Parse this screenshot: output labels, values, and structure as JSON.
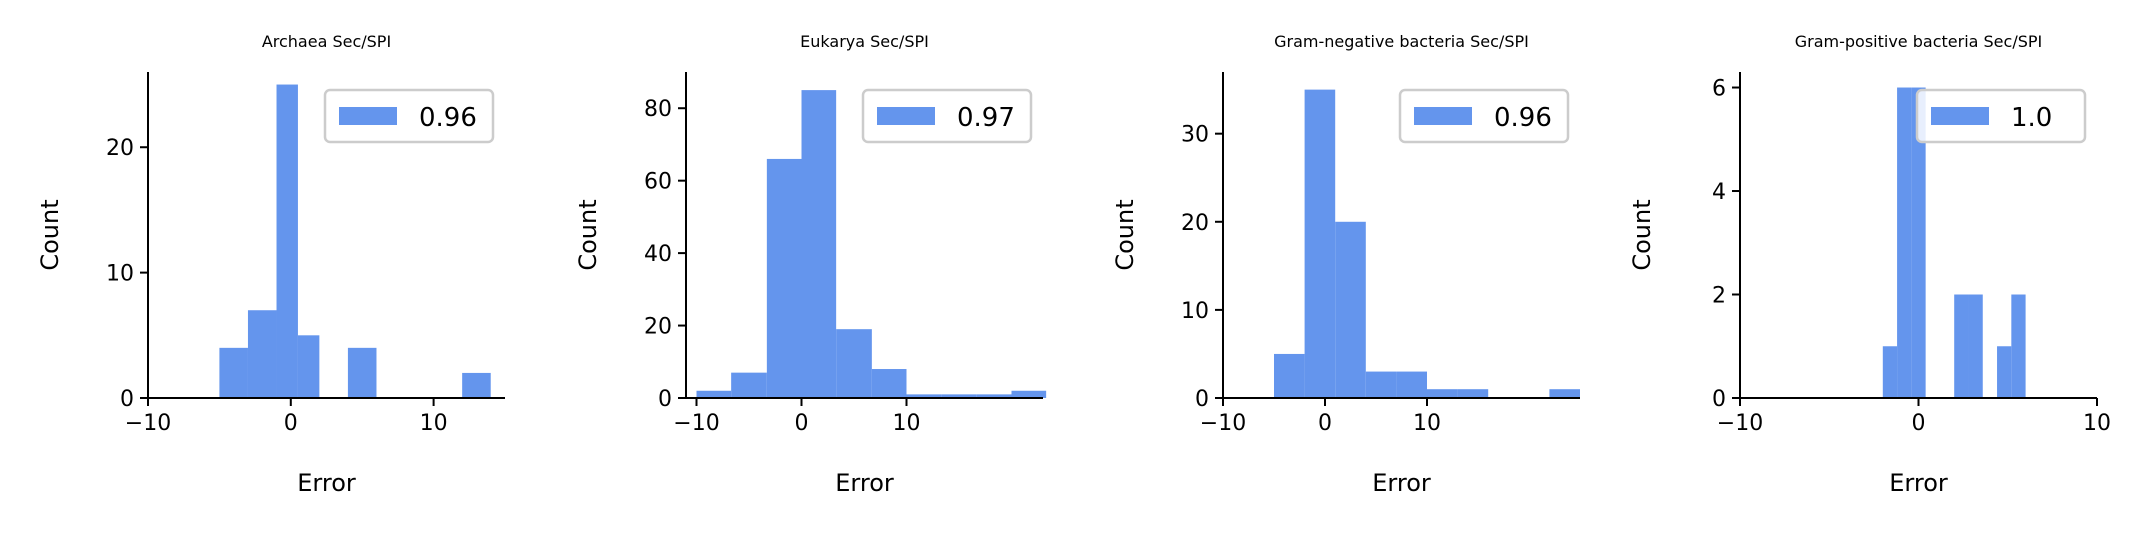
{
  "chart_data": [
    {
      "type": "bar",
      "title": "Archaea Sec/SPI",
      "xlabel": "Error",
      "ylabel": "Count",
      "xlim": [
        -10,
        15
      ],
      "ylim": [
        0,
        26
      ],
      "xticks": [
        -10,
        0,
        10
      ],
      "xtick_labels": [
        "−10",
        "0",
        "10"
      ],
      "yticks": [
        0,
        10,
        20
      ],
      "ytick_labels": [
        "0",
        "10",
        "20"
      ],
      "bin_edges": [
        -5,
        -3,
        -1,
        0.5,
        2,
        4,
        6,
        8,
        10,
        12,
        14
      ],
      "values": [
        4,
        7,
        25,
        5,
        0,
        4,
        0,
        0,
        0,
        2
      ],
      "legend": {
        "label": "0.96",
        "position": "upper right"
      },
      "color": "#6495ED"
    },
    {
      "type": "bar",
      "title": "Eukarya Sec/SPI",
      "xlabel": "Error",
      "ylabel": "Count",
      "xlim": [
        -11,
        23
      ],
      "ylim": [
        0,
        90
      ],
      "xticks": [
        -10,
        0,
        10
      ],
      "xtick_labels": [
        "−10",
        "0",
        "10"
      ],
      "yticks": [
        0,
        20,
        40,
        60,
        80
      ],
      "ytick_labels": [
        "0",
        "20",
        "40",
        "60",
        "80"
      ],
      "bin_edges": [
        -10,
        -6.7,
        -3.3,
        0,
        3.3,
        6.7,
        10,
        13.3,
        16.7,
        20,
        23.3
      ],
      "values": [
        2,
        7,
        66,
        85,
        19,
        8,
        1,
        1,
        1,
        2
      ],
      "legend": {
        "label": "0.97",
        "position": "upper right"
      },
      "color": "#6495ED"
    },
    {
      "type": "bar",
      "title": "Gram-negative bacteria Sec/SPI",
      "xlabel": "Error",
      "ylabel": "Count",
      "xlim": [
        -10,
        25
      ],
      "ylim": [
        0,
        37
      ],
      "xticks": [
        -10,
        0,
        10
      ],
      "xtick_labels": [
        "−10",
        "0",
        "10"
      ],
      "yticks": [
        0,
        10,
        20,
        30
      ],
      "ytick_labels": [
        "0",
        "10",
        "20",
        "30"
      ],
      "bin_edges": [
        -5,
        -2,
        1,
        4,
        7,
        10,
        13,
        16,
        19,
        22,
        25
      ],
      "values": [
        5,
        35,
        20,
        3,
        3,
        1,
        1,
        0,
        0,
        1
      ],
      "legend": {
        "label": "0.96",
        "position": "upper right"
      },
      "color": "#6495ED"
    },
    {
      "type": "bar",
      "title": "Gram-positive bacteria Sec/SPI",
      "xlabel": "Error",
      "ylabel": "Count",
      "xlim": [
        -10,
        10
      ],
      "ylim": [
        0,
        6.3
      ],
      "xticks": [
        -10,
        0,
        10
      ],
      "xtick_labels": [
        "−10",
        "0",
        "10"
      ],
      "yticks": [
        0,
        2,
        4,
        6
      ],
      "ytick_labels": [
        "0",
        "2",
        "4",
        "6"
      ],
      "bin_edges": [
        -2,
        -1.2,
        -0.4,
        0.4,
        1.2,
        2,
        2.8,
        3.6,
        4.4,
        5.2,
        6
      ],
      "values": [
        1,
        6,
        6,
        0,
        0,
        2,
        2,
        0,
        1,
        2
      ],
      "legend": {
        "label": "1.0",
        "position": "upper right"
      },
      "color": "#6495ED"
    }
  ]
}
